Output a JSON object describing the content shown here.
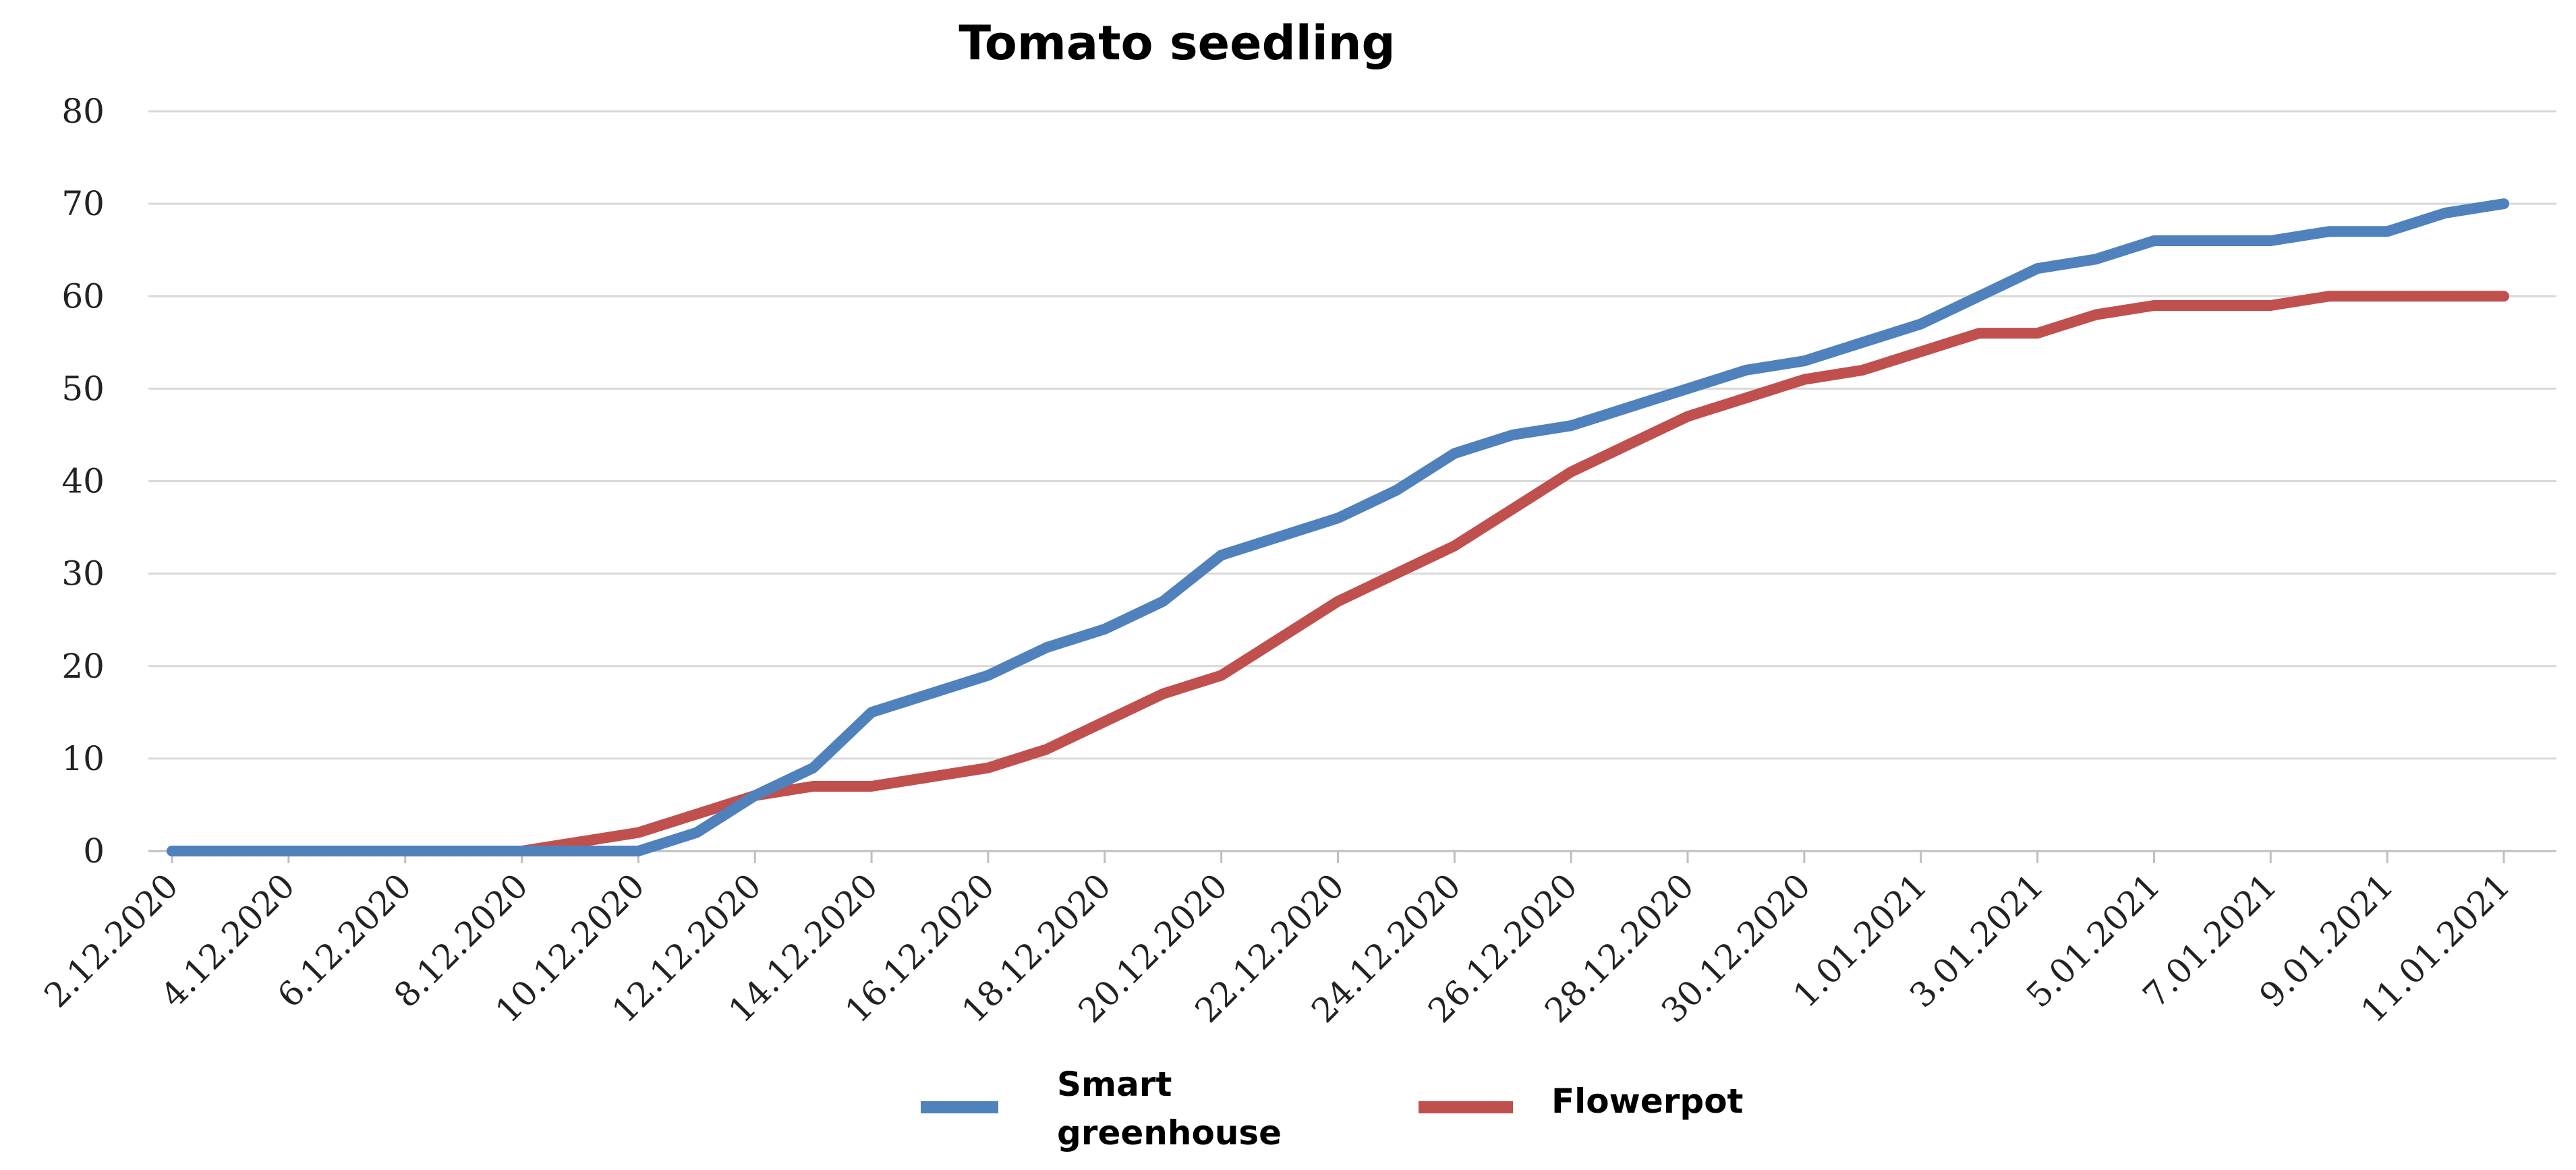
{
  "chart_data": {
    "type": "line",
    "title": "Tomato seedling",
    "xlabel": "",
    "ylabel": "",
    "ylim": [
      0,
      80
    ],
    "yticks": [
      0,
      10,
      20,
      30,
      40,
      50,
      60,
      70,
      80
    ],
    "grid": true,
    "legend_position": "bottom",
    "x": [
      "2.12.2020",
      "3.12.2020",
      "4.12.2020",
      "5.12.2020",
      "6.12.2020",
      "7.12.2020",
      "8.12.2020",
      "9.12.2020",
      "10.12.2020",
      "11.12.2020",
      "12.12.2020",
      "13.12.2020",
      "14.12.2020",
      "15.12.2020",
      "16.12.2020",
      "17.12.2020",
      "18.12.2020",
      "19.12.2020",
      "20.12.2020",
      "21.12.2020",
      "22.12.2020",
      "23.12.2020",
      "24.12.2020",
      "25.12.2020",
      "26.12.2020",
      "27.12.2020",
      "28.12.2020",
      "29.12.2020",
      "30.12.2020",
      "31.12.2020",
      "1.01.2021",
      "2.01.2021",
      "3.01.2021",
      "4.01.2021",
      "5.01.2021",
      "6.01.2021",
      "7.01.2021",
      "8.01.2021",
      "9.01.2021",
      "10.01.2021",
      "11.01.2021"
    ],
    "x_tick_labels": [
      "2.12.2020",
      "4.12.2020",
      "6.12.2020",
      "8.12.2020",
      "10.12.2020",
      "12.12.2020",
      "14.12.2020",
      "16.12.2020",
      "18.12.2020",
      "20.12.2020",
      "22.12.2020",
      "24.12.2020",
      "26.12.2020",
      "28.12.2020",
      "30.12.2020",
      "1.01.2021",
      "3.01.2021",
      "5.01.2021",
      "7.01.2021",
      "9.01.2021",
      "11.01.2021"
    ],
    "series": [
      {
        "name": "Smart greenhouse",
        "color": "#4f81bd",
        "values": [
          0,
          0,
          0,
          0,
          0,
          0,
          0,
          0,
          0,
          2,
          6,
          9,
          15,
          17,
          19,
          22,
          24,
          27,
          32,
          34,
          36,
          39,
          43,
          45,
          46,
          48,
          50,
          52,
          53,
          55,
          57,
          60,
          63,
          64,
          66,
          66,
          66,
          67,
          67,
          69,
          70
        ]
      },
      {
        "name": "Flowerpot",
        "color": "#c0504d",
        "values": [
          0,
          0,
          0,
          0,
          0,
          0,
          0,
          1,
          2,
          4,
          6,
          7,
          7,
          8,
          9,
          11,
          14,
          17,
          19,
          23,
          27,
          30,
          33,
          37,
          41,
          44,
          47,
          49,
          51,
          52,
          54,
          56,
          56,
          58,
          59,
          59,
          59,
          60,
          60,
          60,
          60
        ]
      }
    ]
  },
  "legend": {
    "smart_line1": "Smart",
    "smart_line2": "greenhouse",
    "flowerpot": "Flowerpot"
  }
}
